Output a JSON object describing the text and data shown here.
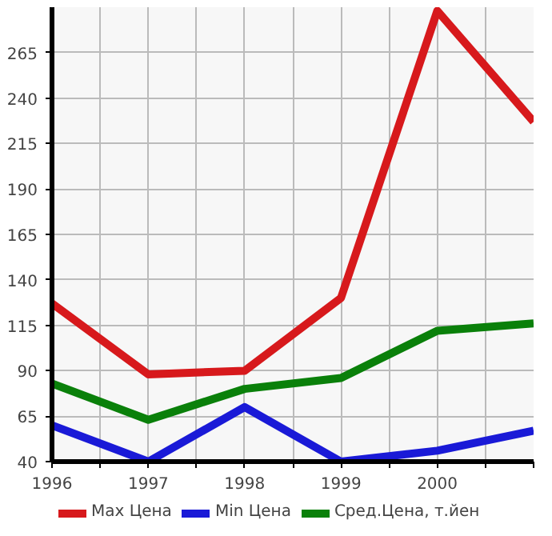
{
  "chart_data": {
    "type": "line",
    "x": [
      1996,
      1997,
      1998,
      1999,
      2000,
      2001
    ],
    "xlim": [
      1996,
      2001
    ],
    "xticks": [
      1996,
      {
        "value": 1996.5,
        "label": null
      },
      1997,
      {
        "value": 1997.5,
        "label": null
      },
      1998,
      {
        "value": 1998.5,
        "label": null
      },
      1999,
      {
        "value": 1999.5,
        "label": null
      },
      2000,
      {
        "value": 2000.5,
        "label": null
      },
      {
        "value": 2001,
        "label": null
      }
    ],
    "ylim": [
      40,
      290
    ],
    "yticks": [
      40,
      65,
      90,
      115,
      140,
      165,
      190,
      215,
      240,
      265
    ],
    "series": [
      {
        "name": "Max Цена",
        "color": "#d7191c",
        "values": [
          127,
          88,
          90,
          130,
          288,
          227
        ]
      },
      {
        "name": "Min Цена",
        "color": "#1a1ad7",
        "values": [
          60,
          40,
          70,
          40,
          46,
          57
        ]
      },
      {
        "name": "Сред.Цена, т.йен",
        "color": "#0a800a",
        "values": [
          83,
          63,
          80,
          86,
          112,
          116
        ]
      }
    ],
    "grid": true,
    "legend": "bottom",
    "marker": "none",
    "line_style": "solid"
  }
}
